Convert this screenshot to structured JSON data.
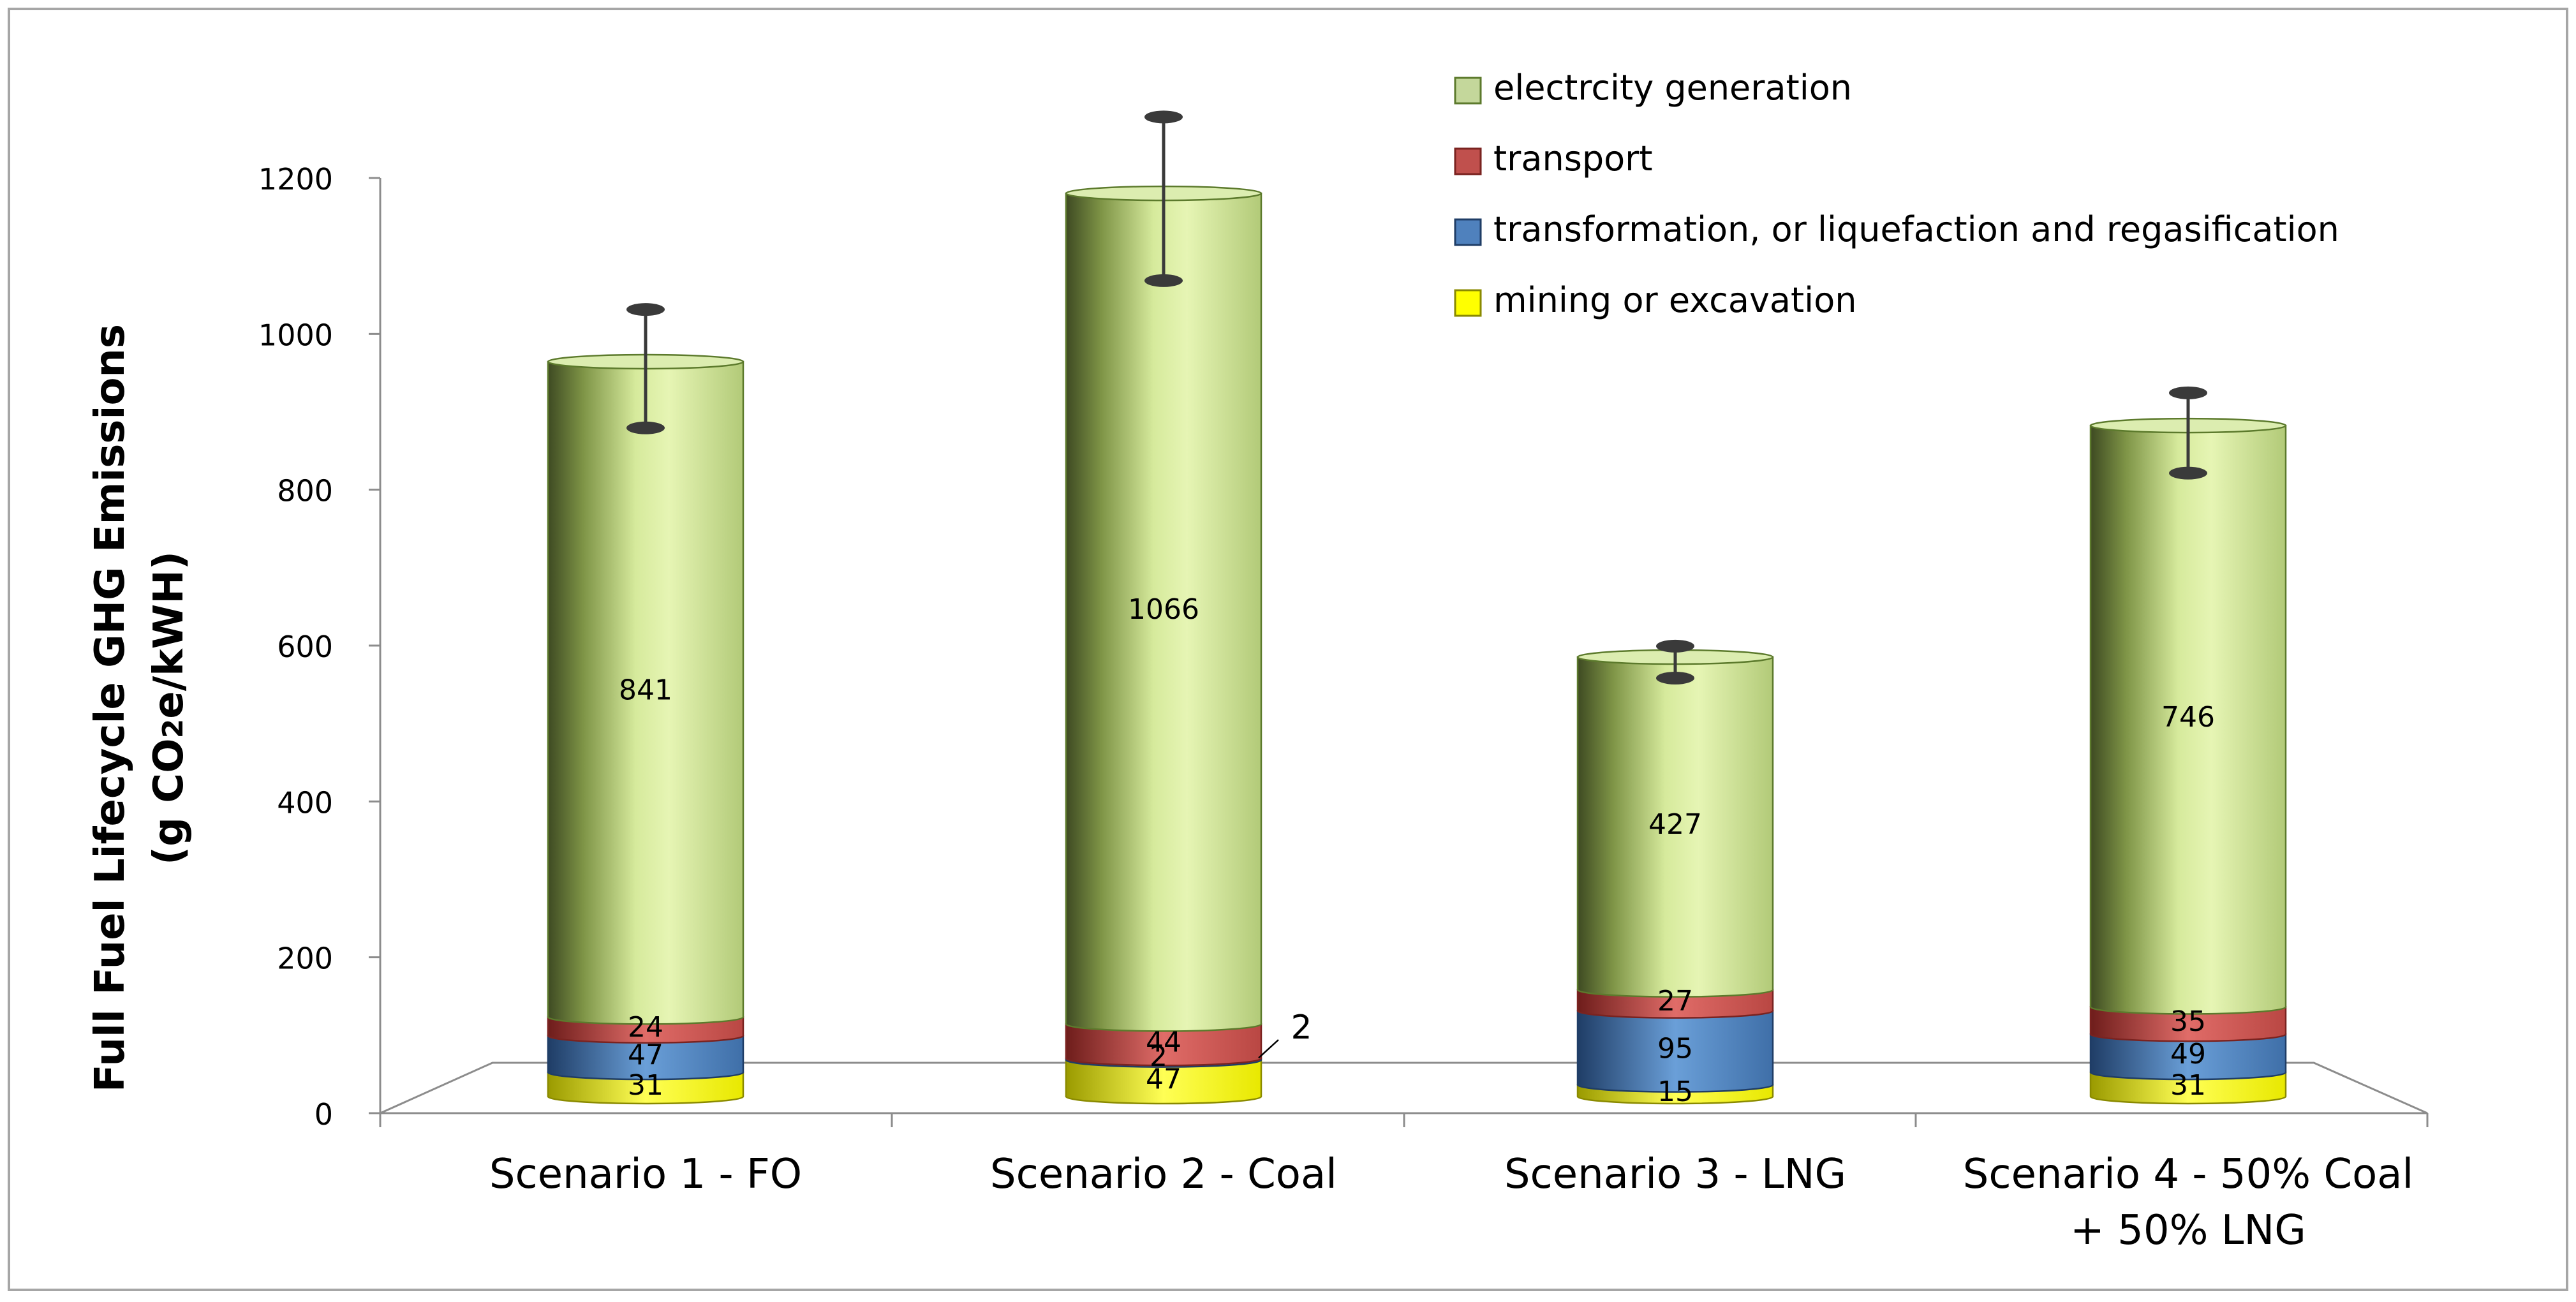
{
  "chart_data": {
    "type": "bar",
    "subtype": "stacked-cylinder-3d",
    "title": "",
    "xlabel": "",
    "ylabel": {
      "line1": "Full Fuel Lifecycle GHG Emissions",
      "line2_prefix": "(g CO",
      "line2_subscript": "2",
      "line2_suffix": "e/kWH)"
    },
    "ylim": [
      0,
      1200
    ],
    "yticks": [
      0,
      200,
      400,
      600,
      800,
      1000,
      1200
    ],
    "ytick_labels": [
      "0",
      "200",
      "400",
      "600",
      "800",
      "1000",
      "1200"
    ],
    "legend_position": "top-right",
    "categories": [
      {
        "line1": "Scenario 1 - FO",
        "line2": ""
      },
      {
        "line1": "Scenario 2 - Coal",
        "line2": ""
      },
      {
        "line1": "Scenario 3 - LNG",
        "line2": ""
      },
      {
        "line1": "Scenario 4 - 50% Coal",
        "line2": "+ 50% LNG"
      }
    ],
    "series": [
      {
        "name": "mining or excavation",
        "color": "#ffff00",
        "values": [
          31,
          47,
          15,
          31
        ],
        "labels": [
          "31",
          "47",
          "15",
          "31"
        ]
      },
      {
        "name": "transformation, or liquefaction and regasification",
        "color": "#4f81bd",
        "values": [
          47,
          2,
          95,
          49
        ],
        "labels": [
          "47",
          "2",
          "95",
          "49"
        ]
      },
      {
        "name": "transport",
        "color": "#c0504d",
        "values": [
          24,
          44,
          27,
          35
        ],
        "labels": [
          "24",
          "44",
          "27",
          "35"
        ]
      },
      {
        "name": "electrcity generation",
        "color": "#c4d79b",
        "values": [
          841,
          1066,
          427,
          746
        ],
        "labels": [
          "841",
          "1066",
          "427",
          "746"
        ]
      }
    ],
    "legend_order": [
      3,
      2,
      1,
      0
    ],
    "error_bars": [
      {
        "low": 858,
        "high": 1010
      },
      {
        "low": 1047,
        "high": 1257
      },
      {
        "low": 537,
        "high": 578
      },
      {
        "low": 800,
        "high": 903
      }
    ],
    "callout_label": "2"
  }
}
